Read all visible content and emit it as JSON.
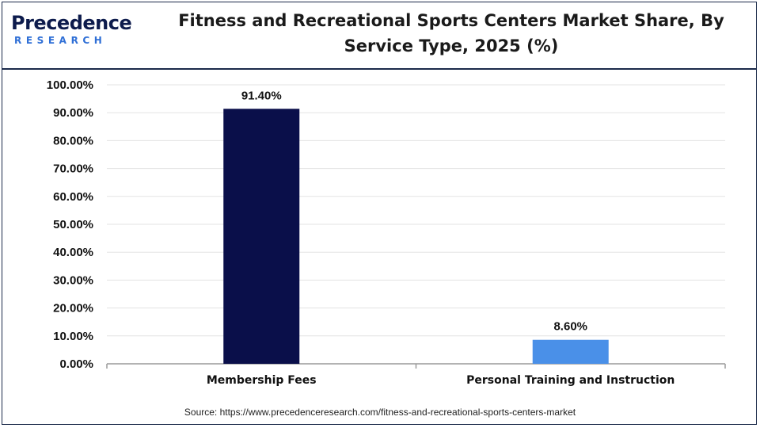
{
  "brand": {
    "name": "Precedence",
    "sub": "RESEARCH",
    "primary_color": "#0d1b4c",
    "accent_color": "#2f6fd6"
  },
  "title_line1": "Fitness and Recreational Sports Centers Market Share, By",
  "title_line2": "Service Type, 2025 (%)",
  "source": "Source: https://www.precedenceresearch.com/fitness-and-recreational-sports-centers-market",
  "chart_data": {
    "type": "bar",
    "title": "Fitness and Recreational Sports Centers Market Share, By Service Type, 2025 (%)",
    "categories": [
      "Membership Fees",
      "Personal Training and Instruction"
    ],
    "values": [
      91.4,
      8.6
    ],
    "data_labels": [
      "91.40%",
      "8.60%"
    ],
    "colors": [
      "#0a0f4a",
      "#4a90e8"
    ],
    "ylim": [
      0,
      100
    ],
    "yticks": [
      "0.00%",
      "10.00%",
      "20.00%",
      "30.00%",
      "40.00%",
      "50.00%",
      "60.00%",
      "70.00%",
      "80.00%",
      "90.00%",
      "100.00%"
    ],
    "xlabel": "",
    "ylabel": "",
    "grid": true,
    "legend": "none"
  }
}
